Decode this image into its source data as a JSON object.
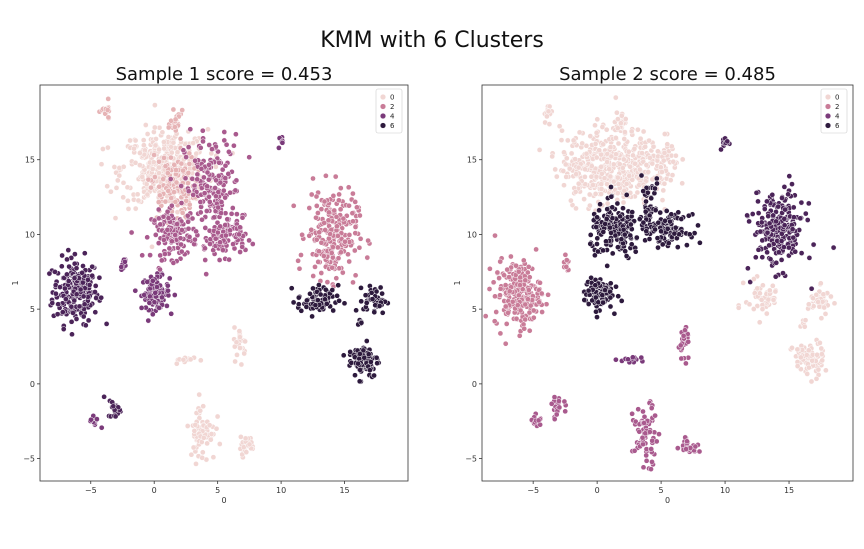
{
  "suptitle": "KMM with 6 Clusters",
  "colors": {
    "hue_0": "#f1d6d3",
    "hue_1": "#e6b3b5",
    "hue_2": "#c97c98",
    "hue_3": "#a95a8e",
    "hue_4": "#7a3a7a",
    "hue_5": "#4b2459",
    "hue_6": "#2d1a3d"
  },
  "chart_data": [
    {
      "type": "scatter",
      "title": "Sample 1 score = 0.453",
      "xlabel": "0",
      "ylabel": "1",
      "xlim": [
        -9,
        20
      ],
      "ylim": [
        -6.5,
        20
      ],
      "xticks": [
        -5,
        0,
        5,
        10,
        15
      ],
      "yticks": [
        -5,
        0,
        5,
        10,
        15
      ],
      "legend": {
        "position": "top-right",
        "entries": [
          "0",
          "2",
          "4",
          "6"
        ]
      },
      "clusters": [
        {
          "x": -6.2,
          "y": 6.2,
          "sx": 0.9,
          "sy": 1.1,
          "n": 220,
          "hue": 5
        },
        {
          "x": 0.1,
          "y": 6.1,
          "sx": 0.55,
          "sy": 0.55,
          "n": 110,
          "hue": 4
        },
        {
          "x": -2.4,
          "y": 8.0,
          "sx": 0.12,
          "sy": 0.3,
          "n": 10,
          "hue": 4
        },
        {
          "x": 0.8,
          "y": 14.4,
          "sx": 1.7,
          "sy": 1.3,
          "n": 380,
          "hue": 0
        },
        {
          "x": 1.5,
          "y": 13.2,
          "sx": 0.9,
          "sy": 1.1,
          "n": 120,
          "hue": 1
        },
        {
          "x": 4.6,
          "y": 13.0,
          "sx": 1.1,
          "sy": 1.8,
          "n": 200,
          "hue": 3
        },
        {
          "x": 1.6,
          "y": 10.0,
          "sx": 0.9,
          "sy": 0.8,
          "n": 130,
          "hue": 3
        },
        {
          "x": 5.6,
          "y": 9.8,
          "sx": 0.8,
          "sy": 0.6,
          "n": 90,
          "hue": 3
        },
        {
          "x": 1.8,
          "y": 17.4,
          "sx": 0.25,
          "sy": 0.4,
          "n": 22,
          "hue": 1
        },
        {
          "x": -3.8,
          "y": 18.2,
          "sx": 0.2,
          "sy": 0.3,
          "n": 15,
          "hue": 1
        },
        {
          "x": 10.0,
          "y": 16.2,
          "sx": 0.15,
          "sy": 0.3,
          "n": 10,
          "hue": 4
        },
        {
          "x": 14.0,
          "y": 10.0,
          "sx": 1.0,
          "sy": 1.5,
          "n": 230,
          "hue": 2
        },
        {
          "x": 12.9,
          "y": 5.6,
          "sx": 0.8,
          "sy": 0.5,
          "n": 75,
          "hue": 6
        },
        {
          "x": 17.4,
          "y": 5.6,
          "sx": 0.45,
          "sy": 0.45,
          "n": 45,
          "hue": 6
        },
        {
          "x": 16.5,
          "y": 1.6,
          "sx": 0.6,
          "sy": 0.6,
          "n": 85,
          "hue": 6
        },
        {
          "x": 16.3,
          "y": 4.1,
          "sx": 0.2,
          "sy": 0.1,
          "n": 5,
          "hue": 6
        },
        {
          "x": 6.8,
          "y": 2.7,
          "sx": 0.25,
          "sy": 0.55,
          "n": 25,
          "hue": 0
        },
        {
          "x": 2.6,
          "y": 1.6,
          "sx": 0.5,
          "sy": 0.12,
          "n": 12,
          "hue": 0
        },
        {
          "x": -4.7,
          "y": -2.5,
          "sx": 0.2,
          "sy": 0.2,
          "n": 12,
          "hue": 4
        },
        {
          "x": -3.1,
          "y": -1.6,
          "sx": 0.25,
          "sy": 0.35,
          "n": 22,
          "hue": 5
        },
        {
          "x": 3.8,
          "y": -3.2,
          "sx": 0.5,
          "sy": 1.0,
          "n": 65,
          "hue": 0
        },
        {
          "x": 7.2,
          "y": -4.1,
          "sx": 0.35,
          "sy": 0.3,
          "n": 25,
          "hue": 0
        }
      ]
    },
    {
      "type": "scatter",
      "title": "Sample 2 score = 0.485",
      "xlabel": "0",
      "ylabel": "1",
      "xlim": [
        -9,
        20
      ],
      "ylim": [
        -6.5,
        20
      ],
      "xticks": [
        -5,
        0,
        5,
        10,
        15
      ],
      "yticks": [
        -5,
        0,
        5,
        10,
        15
      ],
      "legend": {
        "position": "top-right",
        "entries": [
          "0",
          "2",
          "4",
          "6"
        ]
      },
      "clusters": [
        {
          "x": -6.2,
          "y": 6.0,
          "sx": 0.9,
          "sy": 1.1,
          "n": 220,
          "hue": 2
        },
        {
          "x": 0.1,
          "y": 6.1,
          "sx": 0.55,
          "sy": 0.55,
          "n": 110,
          "hue": 6
        },
        {
          "x": -2.4,
          "y": 8.0,
          "sx": 0.12,
          "sy": 0.3,
          "n": 10,
          "hue": 2
        },
        {
          "x": 0.8,
          "y": 14.5,
          "sx": 1.8,
          "sy": 1.3,
          "n": 420,
          "hue": 0
        },
        {
          "x": 4.8,
          "y": 14.8,
          "sx": 0.8,
          "sy": 1.0,
          "n": 80,
          "hue": 0
        },
        {
          "x": 1.8,
          "y": 17.4,
          "sx": 0.25,
          "sy": 0.4,
          "n": 22,
          "hue": 0
        },
        {
          "x": -3.8,
          "y": 18.2,
          "sx": 0.2,
          "sy": 0.3,
          "n": 15,
          "hue": 0
        },
        {
          "x": 1.5,
          "y": 10.2,
          "sx": 1.0,
          "sy": 0.9,
          "n": 170,
          "hue": 6
        },
        {
          "x": 4.0,
          "y": 11.8,
          "sx": 0.5,
          "sy": 1.0,
          "n": 55,
          "hue": 6
        },
        {
          "x": 5.8,
          "y": 10.3,
          "sx": 0.7,
          "sy": 0.5,
          "n": 85,
          "hue": 6
        },
        {
          "x": 10.0,
          "y": 16.2,
          "sx": 0.15,
          "sy": 0.3,
          "n": 10,
          "hue": 5
        },
        {
          "x": 14.2,
          "y": 10.3,
          "sx": 1.0,
          "sy": 1.3,
          "n": 220,
          "hue": 5
        },
        {
          "x": 13.0,
          "y": 5.8,
          "sx": 0.7,
          "sy": 0.6,
          "n": 55,
          "hue": 0
        },
        {
          "x": 17.4,
          "y": 5.5,
          "sx": 0.45,
          "sy": 0.45,
          "n": 40,
          "hue": 0
        },
        {
          "x": 16.5,
          "y": 1.6,
          "sx": 0.6,
          "sy": 0.6,
          "n": 80,
          "hue": 0
        },
        {
          "x": 16.2,
          "y": 4.2,
          "sx": 0.15,
          "sy": 0.2,
          "n": 6,
          "hue": 0
        },
        {
          "x": 6.8,
          "y": 2.7,
          "sx": 0.25,
          "sy": 0.55,
          "n": 25,
          "hue": 3
        },
        {
          "x": 2.6,
          "y": 1.6,
          "sx": 0.5,
          "sy": 0.12,
          "n": 12,
          "hue": 4
        },
        {
          "x": -4.7,
          "y": -2.5,
          "sx": 0.2,
          "sy": 0.2,
          "n": 12,
          "hue": 3
        },
        {
          "x": -3.1,
          "y": -1.6,
          "sx": 0.25,
          "sy": 0.35,
          "n": 22,
          "hue": 3
        },
        {
          "x": 3.8,
          "y": -3.4,
          "sx": 0.5,
          "sy": 1.0,
          "n": 70,
          "hue": 3
        },
        {
          "x": 7.2,
          "y": -4.1,
          "sx": 0.35,
          "sy": 0.3,
          "n": 25,
          "hue": 3
        }
      ]
    }
  ]
}
